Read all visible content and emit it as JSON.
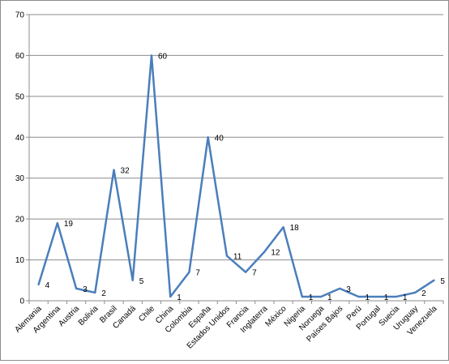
{
  "chart_data": {
    "type": "line",
    "title": "",
    "xlabel": "",
    "ylabel": "",
    "ylim": [
      0,
      70
    ],
    "yticks": [
      0,
      10,
      20,
      30,
      40,
      50,
      60,
      70
    ],
    "grid": "horizontal",
    "legend": "none",
    "line_color": "#4a7ebb",
    "categories": [
      "Alemania",
      "Argentina",
      "Austria",
      "Bolivia",
      "Brasil",
      "Canadá",
      "Chile",
      "China",
      "Colombia",
      "España",
      "Estados Unidos",
      "Francia",
      "Inglaterra",
      "México",
      "Nigeria",
      "Noruega",
      "Países Bajos",
      "Perú",
      "Portugal",
      "Suecia",
      "Uruguay",
      "Venezuela"
    ],
    "values": [
      4,
      19,
      3,
      2,
      32,
      5,
      60,
      1,
      7,
      40,
      11,
      7,
      12,
      18,
      1,
      1,
      3,
      1,
      1,
      1,
      2,
      5
    ],
    "data_labels": [
      "4",
      "19",
      "3",
      "2",
      "32",
      "5",
      "60",
      "1",
      "7",
      "40",
      "11",
      "7",
      "12",
      "18",
      "1",
      "1",
      "3",
      "1",
      "1",
      "1",
      "2",
      "5"
    ]
  }
}
